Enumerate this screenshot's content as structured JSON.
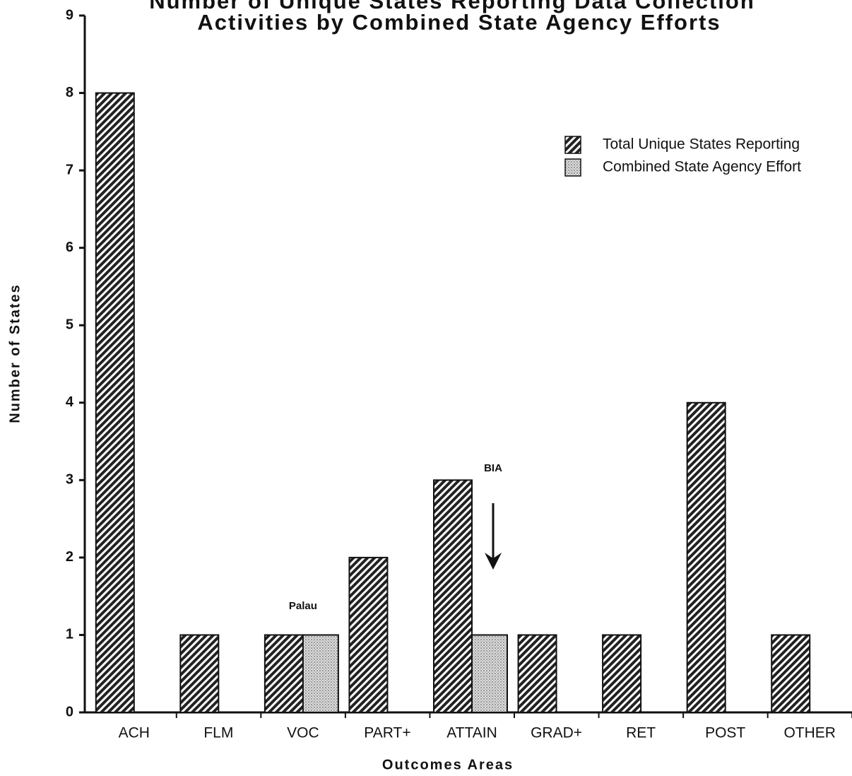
{
  "chart_data": {
    "type": "bar",
    "title": [
      "Number of Unique States Reporting Data Collection",
      "Activities by Combined State Agency Efforts"
    ],
    "x_label": "Outcomes Areas",
    "y_label": "Number of States",
    "categories": [
      "ACH",
      "FLM",
      "VOC",
      "PART+",
      "ATTAIN",
      "GRAD+",
      "RET",
      "POST",
      "OTHER"
    ],
    "series": [
      {
        "name": "Total Unique States Reporting",
        "color": "#222222",
        "values": [
          8,
          1,
          1,
          2,
          3,
          1,
          1,
          4,
          1
        ]
      },
      {
        "name": "Combined State Agency Effort",
        "color": "#999999",
        "values": [
          null,
          null,
          1,
          null,
          1,
          null,
          null,
          null,
          null
        ]
      }
    ],
    "annotations": [
      "Palau",
      "BIA"
    ],
    "ylim": [
      0,
      9
    ],
    "yticks": [
      0,
      1,
      2,
      3,
      4,
      5,
      6,
      7,
      8,
      9
    ],
    "legend": "upper right"
  }
}
